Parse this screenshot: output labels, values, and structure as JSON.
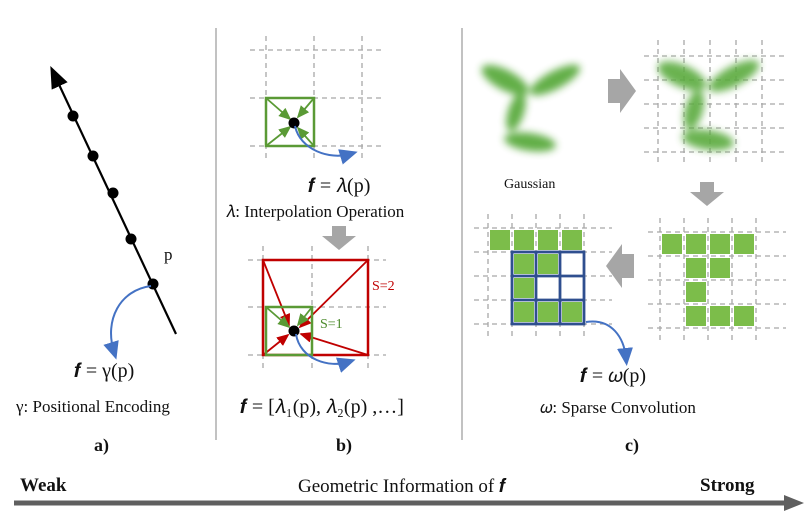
{
  "panel_a": {
    "point_label": "p",
    "equation": "𝒇 = γ(p)",
    "caption": "γ: Positional Encoding",
    "label": "a)"
  },
  "panel_b": {
    "equation_top": "𝒇 = 𝜆(p)",
    "caption": "𝜆: Interpolation Operation",
    "s2_label": "S=2",
    "s1_label": "S=1",
    "equation_bottom": "𝒇 = [𝜆₁(p), 𝜆₂(p) ,…]",
    "label": "b)"
  },
  "panel_c": {
    "gaussian_label": "Gaussian",
    "equation": "𝒇 = 𝜔(p)",
    "caption": "𝜔: Sparse Convolution",
    "label": "c)"
  },
  "scale": {
    "left": "Weak",
    "center": "Geometric Information of 𝒇",
    "right": "Strong"
  },
  "colors": {
    "line_black": "#000000",
    "grid_dash": "#a8a8a8",
    "green": "#5a9a35",
    "voxel_green": "#7cbd4a",
    "red": "#c00000",
    "blue_arrow": "#4472c4",
    "blue_grid": "#2f4f8f",
    "gray_arrow": "#a6a6a6",
    "separator": "#9a9a9a"
  }
}
